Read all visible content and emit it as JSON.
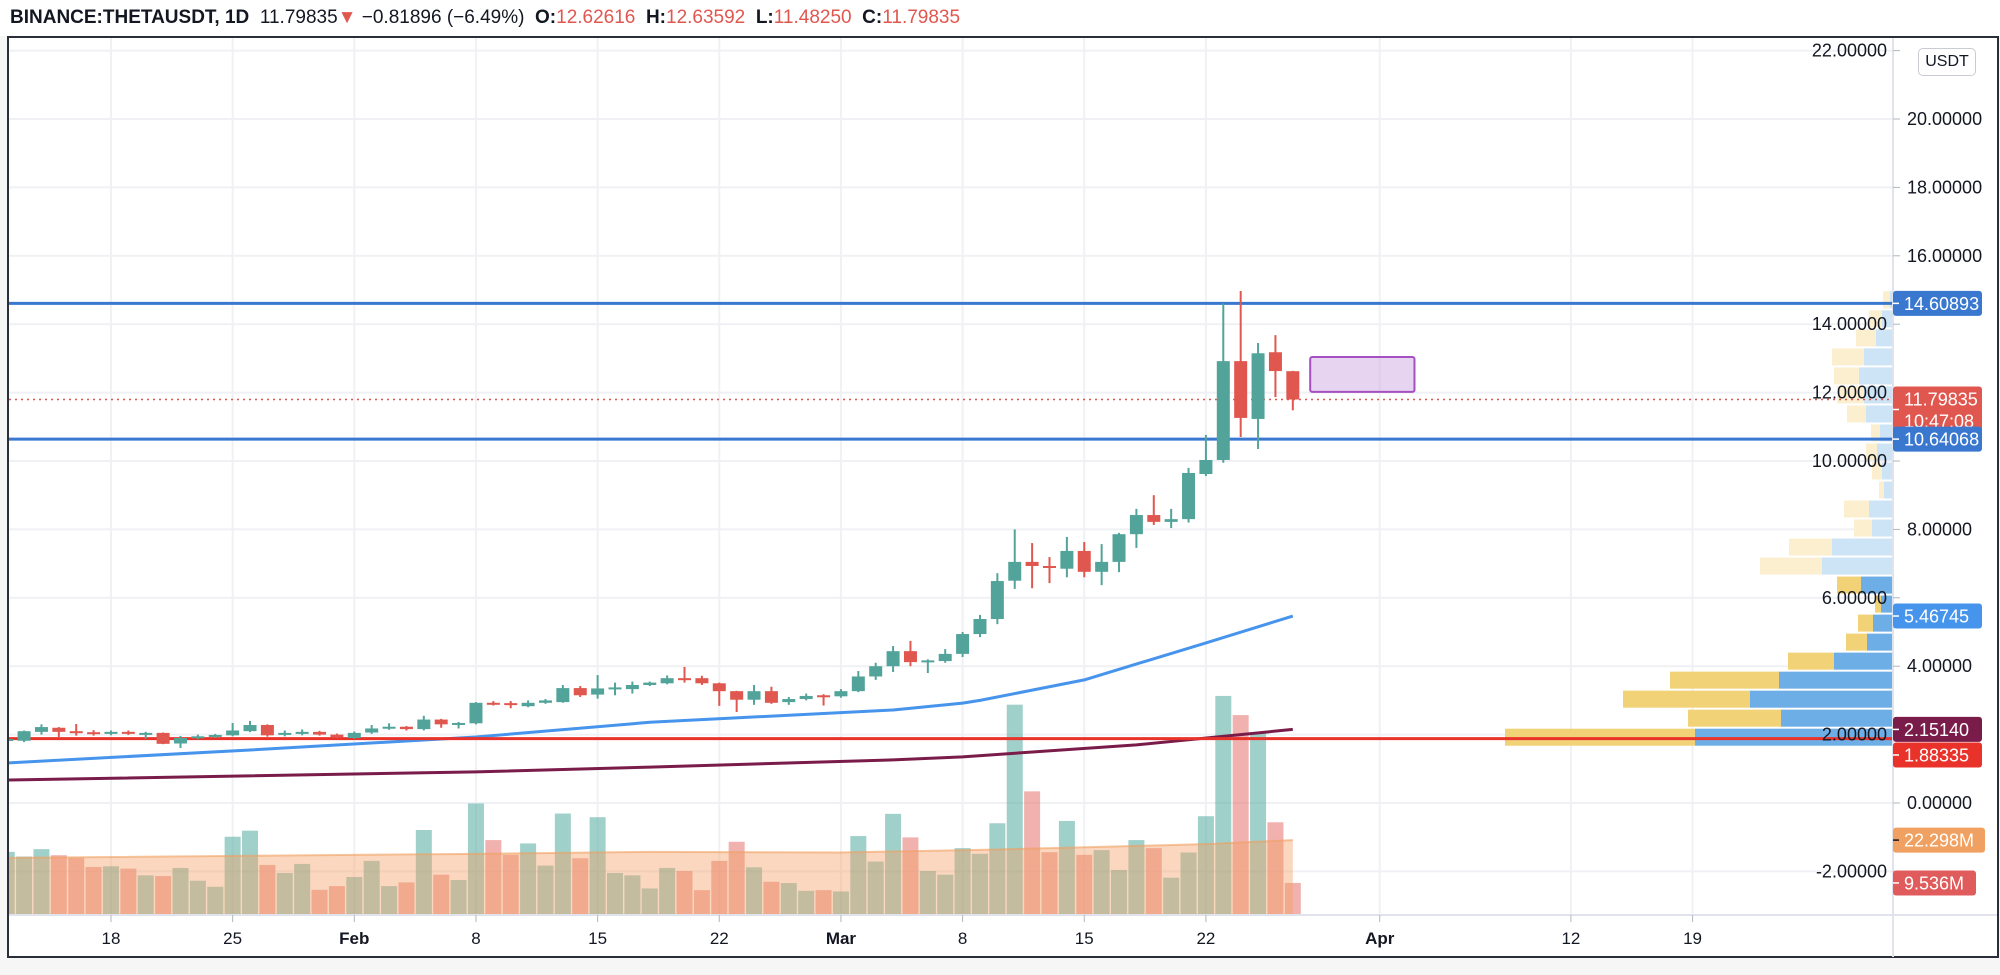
{
  "header": {
    "symbol": "BINANCE:THETAUSDT, 1D",
    "last": "11.79835",
    "direction_icon": "triangle-down",
    "change": "−0.81896 (−6.49%)",
    "o_label": "O:",
    "o_value": "12.62616",
    "h_label": "H:",
    "h_value": "12.63592",
    "l_label": "L:",
    "l_value": "11.48250",
    "c_label": "C:",
    "c_value": "11.79835"
  },
  "currency_button": "USDT",
  "colors": {
    "up": "#52a49a",
    "down": "#e0574f",
    "level_line": "#3a78d0",
    "ma_fast": "#4694ec",
    "ma_slow": "#7a1c4a",
    "support_line": "#e8322a",
    "volume_ma": "#f0a060",
    "rect": "#a64fc0"
  },
  "chart_data": {
    "type": "candlestick",
    "price_axis": {
      "ylim": [
        -2.6,
        22.4
      ],
      "ticks": [
        "22.00000",
        "20.00000",
        "18.00000",
        "16.00000",
        "14.00000",
        "12.00000",
        "10.00000",
        "8.00000",
        "6.00000",
        "4.00000",
        "2.00000",
        "0.00000",
        "-2.00000"
      ],
      "tick_values": [
        22,
        20,
        18,
        16,
        14,
        12,
        10,
        8,
        6,
        4,
        2,
        0,
        -2
      ]
    },
    "time_axis": [
      {
        "label": "18",
        "date": "Jan 18"
      },
      {
        "label": "25",
        "date": "Jan 25"
      },
      {
        "label": "Feb",
        "date": "Feb 1"
      },
      {
        "label": "8",
        "date": "Feb 8"
      },
      {
        "label": "15",
        "date": "Feb 15"
      },
      {
        "label": "22",
        "date": "Feb 22"
      },
      {
        "label": "Mar",
        "date": "Mar 1"
      },
      {
        "label": "8",
        "date": "Mar 8"
      },
      {
        "label": "15",
        "date": "Mar 15"
      },
      {
        "label": "22",
        "date": "Mar 22"
      },
      {
        "label": "Apr",
        "date": "Apr 1"
      },
      {
        "label": "12",
        "date": "Apr 12"
      },
      {
        "label": "19",
        "date": "Apr 19"
      }
    ],
    "first_date": "Jan 12",
    "candles": [
      [
        1.82,
        1.9,
        1.78,
        1.87,
        18.8
      ],
      [
        1.82,
        2.12,
        1.78,
        2.1,
        17.4
      ],
      [
        2.08,
        2.3,
        2.0,
        2.22,
        19.6
      ],
      [
        2.2,
        2.22,
        1.9,
        2.08,
        17.8
      ],
      [
        2.1,
        2.31,
        1.97,
        2.07,
        17.1
      ],
      [
        2.07,
        2.13,
        1.97,
        2.03,
        14.3
      ],
      [
        2.03,
        2.12,
        1.98,
        2.08,
        14.5
      ],
      [
        2.08,
        2.12,
        1.99,
        2.03,
        13.8
      ],
      [
        2.02,
        2.08,
        1.88,
        2.05,
        11.8
      ],
      [
        2.05,
        2.06,
        1.72,
        1.73,
        11.6
      ],
      [
        1.74,
        1.96,
        1.61,
        1.9,
        14.0
      ],
      [
        1.9,
        2.0,
        1.86,
        1.95,
        10.2
      ],
      [
        1.95,
        2.02,
        1.9,
        1.99,
        8.4
      ],
      [
        1.98,
        2.34,
        1.95,
        2.12,
        23.3
      ],
      [
        2.1,
        2.4,
        2.07,
        2.28,
        25.1
      ],
      [
        2.28,
        2.3,
        1.94,
        1.98,
        14.9
      ],
      [
        2.0,
        2.12,
        1.95,
        2.05,
        12.5
      ],
      [
        2.02,
        2.15,
        1.98,
        2.08,
        15.2
      ],
      [
        2.08,
        2.11,
        1.97,
        2.0,
        7.5
      ],
      [
        2.0,
        2.03,
        1.9,
        1.92,
        8.6
      ],
      [
        1.9,
        2.09,
        1.88,
        2.05,
        11.3
      ],
      [
        2.06,
        2.28,
        2.02,
        2.18,
        16.1
      ],
      [
        2.18,
        2.33,
        2.14,
        2.23,
        8.6
      ],
      [
        2.23,
        2.25,
        2.12,
        2.16,
        9.7
      ],
      [
        2.16,
        2.55,
        2.12,
        2.44,
        25.3
      ],
      [
        2.44,
        2.46,
        2.2,
        2.3,
        12.0
      ],
      [
        2.3,
        2.37,
        2.18,
        2.34,
        10.4
      ],
      [
        2.33,
        2.95,
        2.3,
        2.93,
        33.2
      ],
      [
        2.93,
        2.98,
        2.85,
        2.92,
        22.3
      ],
      [
        2.92,
        2.98,
        2.77,
        2.88,
        17.9
      ],
      [
        2.83,
        3.0,
        2.8,
        2.93,
        21.3
      ],
      [
        2.93,
        3.04,
        2.9,
        3.0,
        14.7
      ],
      [
        2.95,
        3.45,
        2.93,
        3.36,
        30.2
      ],
      [
        3.36,
        3.42,
        3.1,
        3.15,
        16.9
      ],
      [
        3.17,
        3.74,
        3.05,
        3.35,
        29.1
      ],
      [
        3.33,
        3.52,
        3.15,
        3.38,
        12.5
      ],
      [
        3.33,
        3.55,
        3.2,
        3.45,
        11.8
      ],
      [
        3.45,
        3.55,
        3.42,
        3.52,
        7.9
      ],
      [
        3.5,
        3.73,
        3.47,
        3.65,
        14.0
      ],
      [
        3.65,
        3.98,
        3.52,
        3.62,
        13.1
      ],
      [
        3.65,
        3.72,
        3.45,
        3.5,
        7.4
      ],
      [
        3.5,
        3.52,
        2.84,
        3.27,
        16.1
      ],
      [
        3.27,
        3.28,
        2.66,
        3.02,
        21.8
      ],
      [
        3.02,
        3.45,
        2.87,
        3.27,
        14.2
      ],
      [
        3.27,
        3.4,
        2.9,
        2.93,
        9.9
      ],
      [
        2.95,
        3.1,
        2.87,
        3.04,
        9.5
      ],
      [
        3.04,
        3.2,
        3.0,
        3.13,
        7.2
      ],
      [
        3.15,
        3.18,
        2.85,
        3.12,
        7.4
      ],
      [
        3.12,
        3.33,
        3.08,
        3.27,
        7.0
      ],
      [
        3.27,
        3.86,
        3.24,
        3.7,
        23.5
      ],
      [
        3.7,
        4.1,
        3.6,
        4.0,
        15.9
      ],
      [
        4.0,
        4.59,
        3.83,
        4.44,
        30.1
      ],
      [
        4.44,
        4.74,
        4.0,
        4.12,
        23.1
      ],
      [
        4.12,
        4.2,
        3.8,
        4.17,
        13.1
      ],
      [
        4.15,
        4.5,
        4.1,
        4.36,
        12.0
      ],
      [
        4.36,
        5.0,
        4.27,
        4.94,
        19.9
      ],
      [
        4.94,
        5.5,
        4.85,
        5.38,
        18.2
      ],
      [
        5.38,
        6.72,
        5.23,
        6.49,
        27.3
      ],
      [
        6.5,
        8.0,
        6.26,
        7.05,
        62.6
      ],
      [
        7.05,
        7.6,
        6.28,
        6.93,
        36.8
      ],
      [
        6.93,
        7.19,
        6.43,
        6.9,
        18.7
      ],
      [
        6.85,
        7.78,
        6.6,
        7.37,
        28.0
      ],
      [
        7.37,
        7.63,
        6.6,
        6.76,
        17.9
      ],
      [
        6.76,
        7.57,
        6.37,
        7.05,
        19.3
      ],
      [
        7.05,
        7.9,
        6.75,
        7.86,
        13.4
      ],
      [
        7.86,
        8.6,
        7.46,
        8.42,
        22.3
      ],
      [
        8.42,
        9.0,
        8.13,
        8.22,
        19.9
      ],
      [
        8.22,
        8.6,
        8.04,
        8.3,
        11.1
      ],
      [
        8.3,
        9.8,
        8.2,
        9.65,
        18.6
      ],
      [
        9.62,
        10.76,
        9.56,
        10.03,
        29.4
      ],
      [
        10.03,
        14.61,
        9.95,
        12.92,
        65.2
      ],
      [
        12.92,
        14.97,
        10.7,
        11.26,
        59.5
      ],
      [
        11.23,
        13.45,
        10.35,
        13.15,
        54.1
      ],
      [
        13.18,
        13.68,
        11.87,
        12.63,
        27.6
      ],
      [
        12.62616,
        12.63592,
        11.4825,
        11.79835,
        9.536
      ]
    ],
    "candle_fields": [
      "open",
      "high",
      "low",
      "close",
      "volume_M"
    ],
    "ma_fast": [
      [
        "Jan 12",
        1.17
      ],
      [
        "Jan 26",
        1.55
      ],
      [
        "Feb 8",
        1.93
      ],
      [
        "Feb 18",
        2.36
      ],
      [
        "Mar 4",
        2.72
      ],
      [
        "Mar 8",
        2.92
      ],
      [
        "Mar 9",
        3.0
      ],
      [
        "Mar 15",
        3.6
      ],
      [
        "Mar 22",
        4.68
      ],
      [
        "Mar 27",
        5.46745
      ]
    ],
    "ma_slow": [
      [
        "Jan 12",
        0.67
      ],
      [
        "Feb 8",
        0.91
      ],
      [
        "Feb 18",
        1.05
      ],
      [
        "Mar 4",
        1.26
      ],
      [
        "Mar 8",
        1.35
      ],
      [
        "Mar 18",
        1.7
      ],
      [
        "Mar 27",
        2.1514
      ]
    ],
    "volume_ma": [
      [
        "Jan 12",
        17.0
      ],
      [
        "Feb 8",
        18.2
      ],
      [
        "Feb 18",
        18.8
      ],
      [
        "Mar 1",
        18.6
      ],
      [
        "Mar 10",
        19.5
      ],
      [
        "Mar 22",
        21.1
      ],
      [
        "Mar 27",
        22.298
      ]
    ],
    "horizontal_levels": [
      {
        "price": 14.60893,
        "label": "14.60893",
        "color": "#3a78d0"
      },
      {
        "price": 10.64068,
        "label": "10.64068",
        "color": "#3a78d0"
      },
      {
        "price": 1.88335,
        "label": "1.88335",
        "color": "#e8322a"
      }
    ],
    "rectangle": {
      "from": "Mar 28",
      "to": "Apr 3",
      "top": 13.04,
      "bottom": 12.02
    },
    "labels": {
      "last_price": "11.79835",
      "countdown": "10:47:08",
      "ma_fast": "5.46745",
      "ma_slow": "2.15140",
      "volume_ma": "22.298M",
      "volume": "9.536M"
    },
    "volume_profile": {
      "top_price": 14.99,
      "row_size": 0.556,
      "value_area_from_row": 15,
      "rows": [
        [
          10,
          3
        ],
        [
          24,
          11
        ],
        [
          37,
          17
        ],
        [
          61,
          29
        ],
        [
          59,
          34
        ],
        [
          56,
          29
        ],
        [
          46,
          27
        ],
        [
          22,
          13
        ],
        [
          27,
          16
        ],
        [
          21,
          11
        ],
        [
          14,
          9
        ],
        [
          49,
          24
        ],
        [
          39,
          21
        ],
        [
          104,
          61
        ],
        [
          133,
          71
        ],
        [
          56,
          32
        ],
        [
          18,
          12
        ],
        [
          35,
          20
        ],
        [
          47,
          26
        ],
        [
          105,
          59
        ],
        [
          223,
          114
        ],
        [
          270,
          143
        ],
        [
          205,
          112
        ],
        [
          388,
          198
        ]
      ],
      "row_fields": [
        "total",
        "up"
      ]
    }
  }
}
